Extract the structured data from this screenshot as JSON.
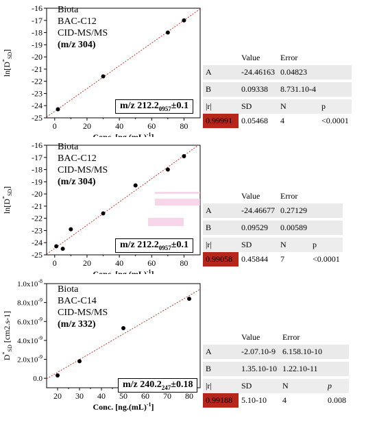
{
  "chart_data": [
    {
      "type": "scatter",
      "legend_lines": [
        "Biota",
        "BAC-C12",
        "CID-MS/MS",
        "(m/z 304)"
      ],
      "mz_label": "m/z 212.2",
      "mz_sub": "0957",
      "mz_tol": "±0.1",
      "xlabel": "Conc. [ng.(mL)",
      "xlabel_sup": "-1",
      "xlabel_end": "]",
      "ylabel": "ln[D",
      "ylabel_sup": "*",
      "ylabel_sub": "SD",
      "ylabel_end": "]",
      "xlim": [
        -5,
        90
      ],
      "ylim": [
        -25,
        -16
      ],
      "x_ticks": [
        "0",
        "20",
        "40",
        "60",
        "80"
      ],
      "y_ticks": [
        "-16",
        "-17",
        "-18",
        "-19",
        "-20",
        "-21",
        "-22",
        "-23",
        "-24",
        "-25"
      ],
      "points": [
        {
          "x": 2,
          "y": -24.3
        },
        {
          "x": 30,
          "y": -21.6
        },
        {
          "x": 70,
          "y": -18.0
        },
        {
          "x": 80,
          "y": -17.0
        }
      ],
      "fit": {
        "intercept": -24.46163,
        "slope": 0.09338
      },
      "stats": {
        "headers": [
          "",
          "Value",
          "Error",
          ""
        ],
        "rowA": [
          "A",
          "-24.46163",
          "0.04823"
        ],
        "rowB": [
          "B",
          "0.09338",
          "8.731.10-4"
        ],
        "hdr2": [
          "|r|",
          "SD",
          "N",
          "p"
        ],
        "vals": [
          "0.99991",
          "0.05468",
          "4",
          "<0.0001"
        ]
      }
    },
    {
      "type": "scatter",
      "legend_lines": [
        "Biota",
        "BAC-C12",
        "CID-MS/MS",
        "(m/z 304)"
      ],
      "mz_label": "m/z 212.2",
      "mz_sub": "0957",
      "mz_tol": "±0.1",
      "xlabel": "Conc. [ng.(mL)",
      "xlabel_sup": "-1",
      "xlabel_end": "]",
      "ylabel": "ln[D",
      "ylabel_sup": "*",
      "ylabel_sub": "SD",
      "ylabel_end": "]",
      "xlim": [
        -5,
        90
      ],
      "ylim": [
        -25,
        -16
      ],
      "x_ticks": [
        "0",
        "20",
        "40",
        "60",
        "80"
      ],
      "y_ticks": [
        "-16",
        "-17",
        "-18",
        "-19",
        "-20",
        "-21",
        "-22",
        "-23",
        "-24",
        "-25"
      ],
      "points": [
        {
          "x": 1,
          "y": -24.3
        },
        {
          "x": 5,
          "y": -24.5
        },
        {
          "x": 10,
          "y": -22.9
        },
        {
          "x": 30,
          "y": -21.6
        },
        {
          "x": 50,
          "y": -19.3
        },
        {
          "x": 70,
          "y": -18.0
        },
        {
          "x": 80,
          "y": -16.9
        }
      ],
      "fit": {
        "intercept": -24.46677,
        "slope": 0.09529
      },
      "stats": {
        "headers": [
          "",
          "Value",
          "Error",
          ""
        ],
        "rowA": [
          "A",
          "-24.46677",
          "0.27129"
        ],
        "rowB": [
          "B",
          "0.09529",
          "0.00589"
        ],
        "hdr2": [
          "|r|",
          "SD",
          "N",
          "p"
        ],
        "vals": [
          "0.99058",
          "0.45844",
          "7",
          "<0.0001"
        ]
      }
    },
    {
      "type": "scatter",
      "legend_lines": [
        "Biota",
        "BAC-C14",
        "CID-MS/MS",
        "(m/z 332)"
      ],
      "mz_label": "m/z 240.2",
      "mz_sub": "247",
      "mz_tol": "±0.18",
      "xlabel": "Conc. [ng.(mL)",
      "xlabel_sup": "-1",
      "xlabel_end": "]",
      "ylabel": "D",
      "ylabel_sup": "*",
      "ylabel_sub": "SD",
      "ylabel_end": " [cm2.s-1]",
      "xlim": [
        15,
        85
      ],
      "ylim": [
        -1e-09,
        1e-08
      ],
      "x_ticks": [
        "20",
        "30",
        "40",
        "50",
        "60",
        "70",
        "80"
      ],
      "y_ticks_labels": [
        {
          "v": 0,
          "t": "0.0"
        },
        {
          "v": 2e-09,
          "t": "2.0x10-9"
        },
        {
          "v": 4e-09,
          "t": "4.0x10-9"
        },
        {
          "v": 6e-09,
          "t": "6.0x10-9"
        },
        {
          "v": 8e-09,
          "t": "8.0x10-9"
        },
        {
          "v": 1e-08,
          "t": "1.0x10-8"
        }
      ],
      "points": [
        {
          "x": 20,
          "y": 3e-10
        },
        {
          "x": 30,
          "y": 1.8e-09
        },
        {
          "x": 50,
          "y": 5.3e-09
        },
        {
          "x": 80,
          "y": 8.4e-09
        }
      ],
      "fit": {
        "intercept": -2.07e-09,
        "slope": 1.35e-10
      },
      "stats": {
        "headers": [
          "",
          "Value",
          "Error",
          ""
        ],
        "rowA": [
          "A",
          "-2.07.10-9",
          "6.158.10-10"
        ],
        "rowB": [
          "B",
          "1.35.10-10",
          "1.22.10-11"
        ],
        "hdr2": [
          "|r|",
          "SD",
          "N",
          "p"
        ],
        "vals": [
          "0.99188",
          "5.10-10",
          "4",
          "0.008"
        ]
      }
    }
  ]
}
